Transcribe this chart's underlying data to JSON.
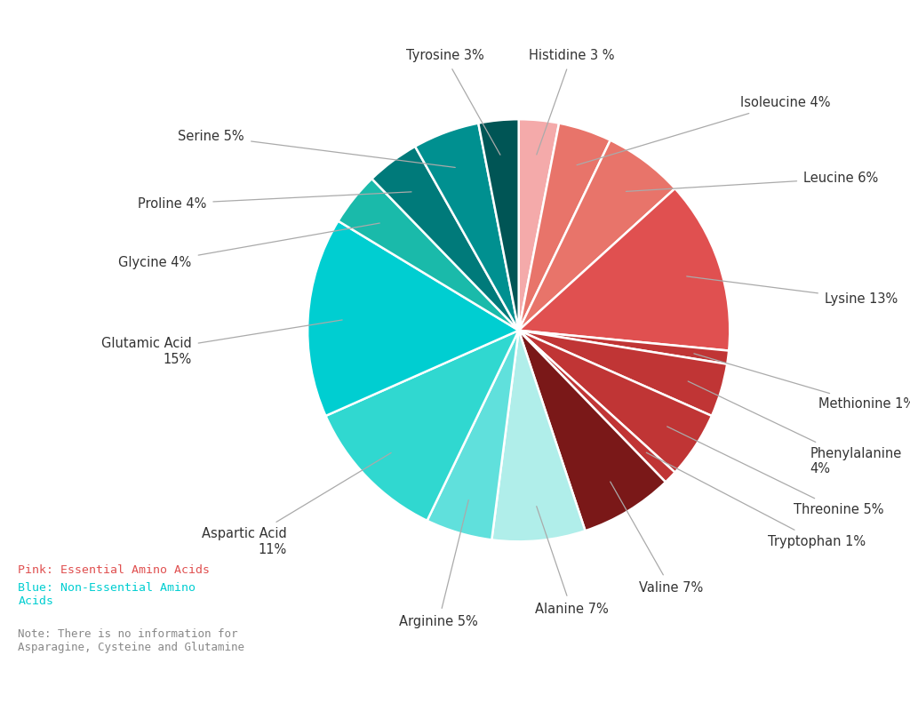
{
  "labels": [
    "Histidine 3 %",
    "Isoleucine 4%",
    "Leucine 6%",
    "Lysine 13%",
    "Methionine 1%",
    "Phenylalanine\n4%",
    "Threonine 5%",
    "Tryptophan 1%",
    "Valine 7%",
    "Alanine 7%",
    "Arginine 5%",
    "Aspartic Acid\n11%",
    "Glutamic Acid\n15%",
    "Glycine 4%",
    "Proline 4%",
    "Serine 5%",
    "Tyrosine 3%"
  ],
  "values": [
    3,
    4,
    6,
    13,
    1,
    4,
    5,
    1,
    7,
    7,
    5,
    11,
    15,
    4,
    4,
    5,
    3
  ],
  "colors": [
    "#F4AAAA",
    "#E8746A",
    "#E8746A",
    "#E05050",
    "#C03535",
    "#C03535",
    "#C03535",
    "#C03535",
    "#7A1818",
    "#B0EEEA",
    "#60E0DC",
    "#30D8D0",
    "#00CED1",
    "#1ABAAA",
    "#007A7A",
    "#009090",
    "#005555"
  ],
  "background_color": "#FFFFFF",
  "legend_pink_text": "Pink: Essential Amino Acids",
  "legend_blue_text": "Blue: Non-Essential Amino\nAcids",
  "legend_note": "Note: There is no information for\nAsparagine, Cysteine and Glutamine",
  "legend_pink_color": "#E05050",
  "legend_blue_color": "#00CED1",
  "legend_note_color": "#888888"
}
